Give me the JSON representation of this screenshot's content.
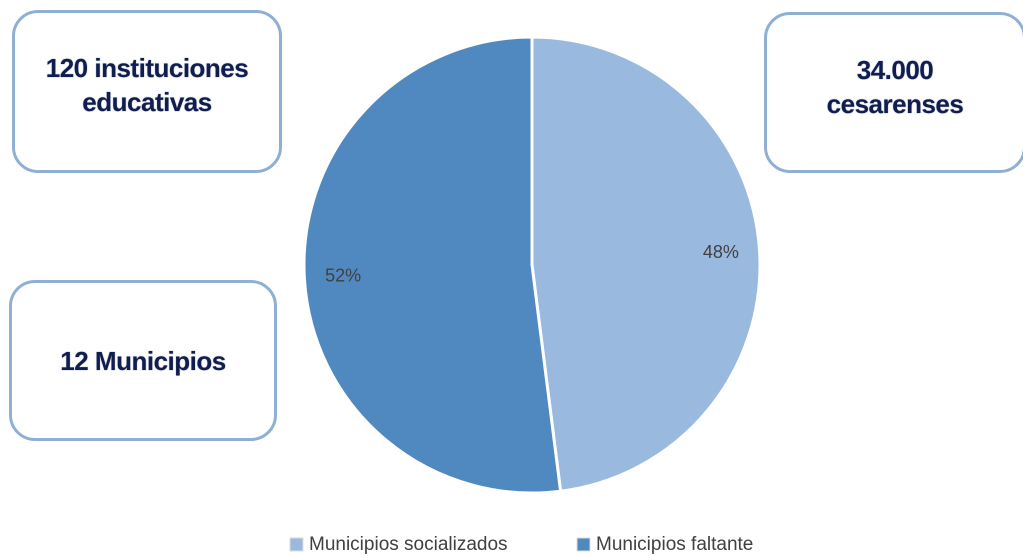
{
  "chart_data": {
    "type": "pie",
    "categories": [
      "Municipios socializados",
      "Municipios faltante"
    ],
    "values": [
      48,
      52
    ],
    "value_labels": [
      "48%",
      "52%"
    ],
    "colors": [
      "#9ab9df",
      "#5089bf"
    ],
    "annotations": [
      "120 instituciones educativas",
      "34.000 cesarenses",
      "12 Municipios"
    ]
  }
}
